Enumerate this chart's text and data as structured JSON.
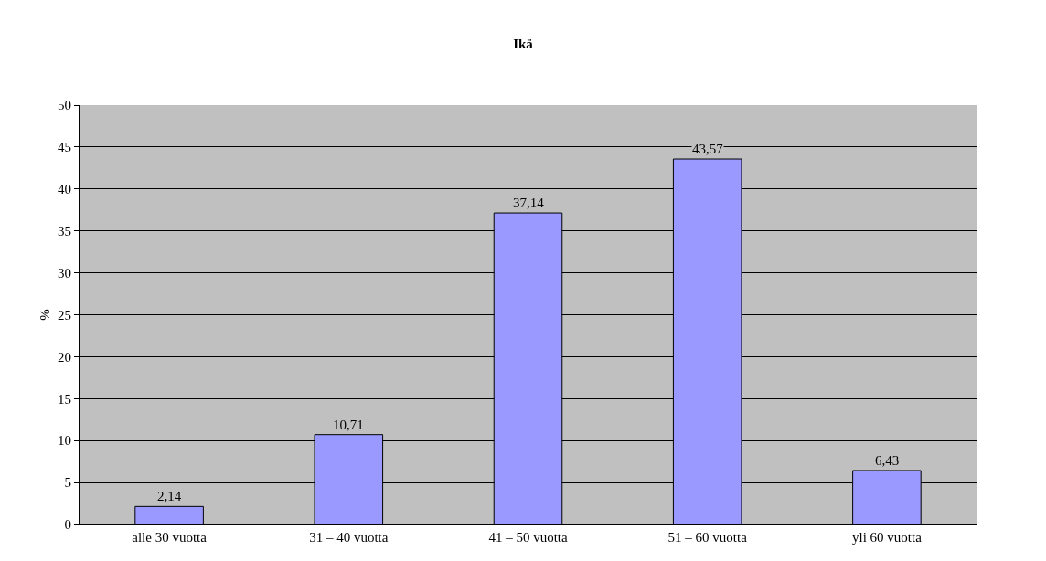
{
  "chart_data": {
    "type": "bar",
    "title": "Ikä",
    "ylabel": "%",
    "categories": [
      "alle 30 vuotta",
      "31 – 40 vuotta",
      "41 – 50 vuotta",
      "51 – 60 vuotta",
      "yli 60 vuotta"
    ],
    "values": [
      2.14,
      10.71,
      37.14,
      43.57,
      6.43
    ],
    "value_labels": [
      "2,14",
      "10,71",
      "37,14",
      "43,57",
      "6,43"
    ],
    "color": "#9999ff",
    "ylim": [
      0,
      50
    ],
    "yticks": [
      0,
      5,
      10,
      15,
      20,
      25,
      30,
      35,
      40,
      45,
      50
    ],
    "grid": "y",
    "legend": false
  }
}
